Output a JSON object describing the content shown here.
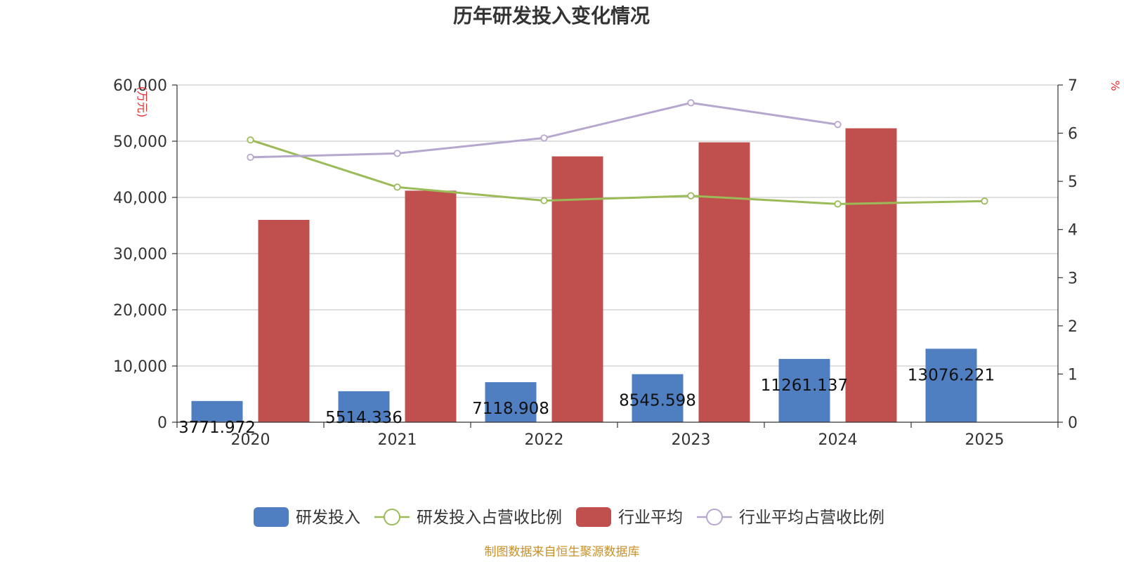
{
  "chart_data": {
    "type": "bar",
    "title": "历年研发投入变化情况",
    "categories": [
      "2020",
      "2021",
      "2022",
      "2023",
      "2024",
      "2025"
    ],
    "y_left": {
      "unit": "(万元)",
      "ticks": [
        "0",
        "10,000",
        "20,000",
        "30,000",
        "40,000",
        "50,000",
        "60,000"
      ],
      "ylim": [
        0,
        60000
      ]
    },
    "y_right": {
      "unit": "%",
      "ticks": [
        "0",
        "1",
        "2",
        "3",
        "4",
        "5",
        "6",
        "7"
      ],
      "ylim": [
        0,
        7
      ]
    },
    "grid": true,
    "legend_position": "bottom",
    "series": [
      {
        "name": "研发投入",
        "kind": "bar",
        "axis": "left",
        "color": "#4f7fc0",
        "values": [
          3771.972,
          5514.336,
          7118.908,
          8545.598,
          11261.137,
          13076.221
        ],
        "labels": [
          "3771.972",
          "5514.336",
          "7118.908",
          "8545.598",
          "11261.137",
          "13076.221"
        ]
      },
      {
        "name": "研发投入占营收比例",
        "kind": "line",
        "axis": "right",
        "color": "#9bbb59",
        "values": [
          5.86,
          4.88,
          4.6,
          4.7,
          4.53,
          4.59
        ]
      },
      {
        "name": "行业平均",
        "kind": "bar",
        "axis": "left",
        "color": "#c0504d",
        "values": [
          36000,
          41200,
          47300,
          49800,
          52300,
          null
        ]
      },
      {
        "name": "行业平均占营收比例",
        "kind": "line",
        "axis": "right",
        "color": "#b7a7cf",
        "values": [
          5.5,
          5.58,
          5.9,
          6.63,
          6.18,
          null
        ]
      }
    ]
  },
  "source_text": "制图数据来自恒生聚源数据库",
  "colors": {
    "unit": "#e03030",
    "source": "#c8902a",
    "axis": "#333333",
    "grid": "#cccccc"
  }
}
